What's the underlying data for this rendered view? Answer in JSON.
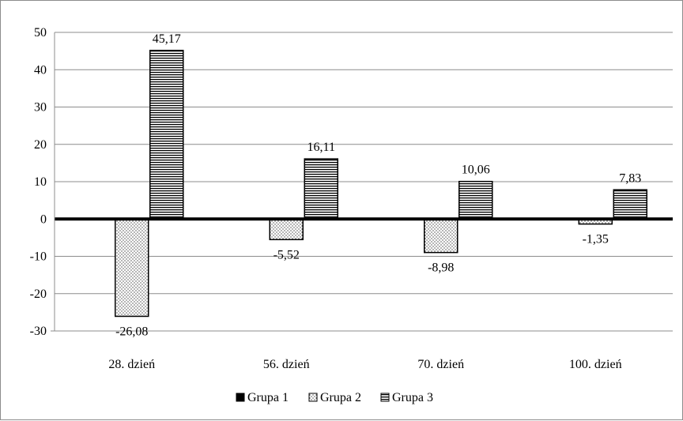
{
  "chart_data": {
    "type": "bar",
    "categories": [
      "28. dzień",
      "56. dzień",
      "70. dzień",
      "100. dzień"
    ],
    "series": [
      {
        "name": "Grupa 1",
        "values": [
          0,
          0,
          0,
          0
        ],
        "labels": [
          "",
          "",
          "",
          ""
        ],
        "pattern": "solid"
      },
      {
        "name": "Grupa 2",
        "values": [
          -26.08,
          -5.52,
          -8.98,
          -1.35
        ],
        "labels": [
          "-26,08",
          "-5,52",
          "-8,98",
          "-1,35"
        ],
        "pattern": "dots"
      },
      {
        "name": "Grupa 3",
        "values": [
          45.17,
          16.11,
          10.06,
          7.83
        ],
        "labels": [
          "45,17",
          "16,11",
          "10,06",
          "7,83"
        ],
        "pattern": "hlines"
      }
    ],
    "ylim": [
      -30,
      50
    ],
    "yticks": [
      50,
      40,
      30,
      20,
      10,
      0,
      -10,
      -20,
      -30
    ],
    "ytick_labels": [
      "50",
      "40",
      "30",
      "20",
      "10",
      "0",
      "-10",
      "-20",
      "-30"
    ],
    "grid": true,
    "legend": "bottom",
    "colors": {
      "bar_fill": "#ffffff",
      "bar_stroke": "#000000",
      "grid": "#8c8c8c",
      "zero_line": "#000000"
    }
  }
}
